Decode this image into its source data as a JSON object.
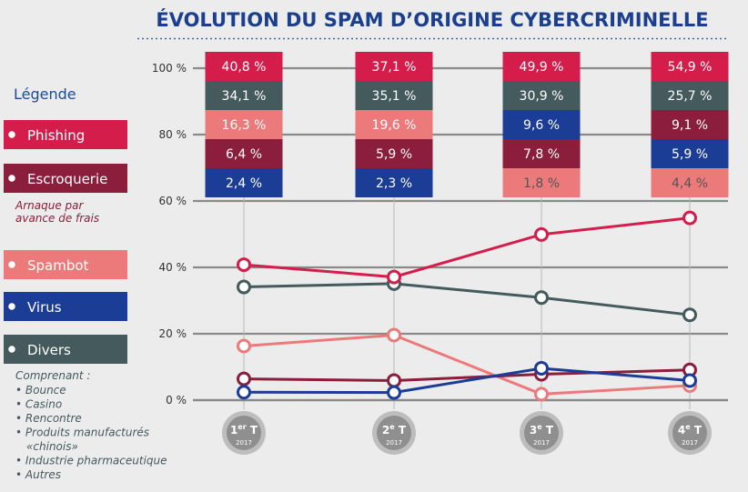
{
  "chart_data": {
    "type": "line",
    "title": "ÉVOLUTION DU SPAM D’ORIGINE CYBERCRIMINELLE",
    "categories": [
      {
        "label": "1er T",
        "num": "1",
        "sup": "er",
        "suffix": " T",
        "year": "2017"
      },
      {
        "label": "2e T",
        "num": "2",
        "sup": "e",
        "suffix": " T",
        "year": "2017"
      },
      {
        "label": "3e T",
        "num": "3",
        "sup": "e",
        "suffix": " T",
        "year": "2017"
      },
      {
        "label": "4e T",
        "num": "4",
        "sup": "e",
        "suffix": " T",
        "year": "2017"
      }
    ],
    "y_ticks": [
      "0 %",
      "20 %",
      "40 %",
      "60 %",
      "80 %",
      "100 %"
    ],
    "ylim": [
      0,
      100
    ],
    "series": [
      {
        "name": "Phishing",
        "key": "phishing",
        "color": "#d51d4c",
        "values": [
          40.8,
          37.1,
          49.9,
          54.9
        ],
        "labels": [
          "40,8 %",
          "37,1 %",
          "49,9 %",
          "54,9 %"
        ]
      },
      {
        "name": "Divers",
        "key": "divers",
        "color": "#455a5c",
        "values": [
          34.1,
          35.1,
          30.9,
          25.7
        ],
        "labels": [
          "34,1 %",
          "35,1 %",
          "30,9 %",
          "25,7 %"
        ]
      },
      {
        "name": "Spambot",
        "key": "spambot",
        "color": "#ec7a7a",
        "values": [
          16.3,
          19.6,
          1.8,
          4.4
        ],
        "labels": [
          "16,3 %",
          "19,6 %",
          "1,8 %",
          "4,4 %"
        ]
      },
      {
        "name": "Escroquerie",
        "key": "escroquerie",
        "color": "#8b1d3d",
        "values": [
          6.4,
          5.9,
          7.8,
          9.1
        ],
        "labels": [
          "6,4 %",
          "5,9 %",
          "7,8 %",
          "9,1 %"
        ]
      },
      {
        "name": "Virus",
        "key": "virus",
        "color": "#1b3d95",
        "values": [
          2.4,
          2.3,
          9.6,
          5.9
        ],
        "labels": [
          "2,4 %",
          "2,3 %",
          "9,6 %",
          "5,9 %"
        ]
      }
    ],
    "box_order": [
      [
        "phishing",
        "divers",
        "spambot",
        "escroquerie",
        "virus"
      ],
      [
        "phishing",
        "divers",
        "spambot",
        "escroquerie",
        "virus"
      ],
      [
        "phishing",
        "divers",
        "virus",
        "escroquerie",
        "spambot"
      ],
      [
        "phishing",
        "divers",
        "escroquerie",
        "virus",
        "spambot"
      ]
    ],
    "grid": true,
    "legend_position": "left"
  },
  "legend": {
    "title": "Légende",
    "items": [
      {
        "key": "phishing",
        "label": "Phishing"
      },
      {
        "key": "escroquerie",
        "label": "Escroquerie",
        "sub": [
          "Arnaque par",
          "avance de frais"
        ]
      },
      {
        "key": "spambot",
        "label": "Spambot"
      },
      {
        "key": "virus",
        "label": "Virus"
      },
      {
        "key": "divers",
        "label": "Divers"
      }
    ],
    "divers_notes": {
      "heading": "Comprenant :",
      "items": [
        "• Bounce",
        "• Casino",
        "• Rencontre",
        "• Produits manufacturés",
        "«chinois»",
        "• Industrie pharmaceutique",
        "• Autres"
      ]
    }
  }
}
